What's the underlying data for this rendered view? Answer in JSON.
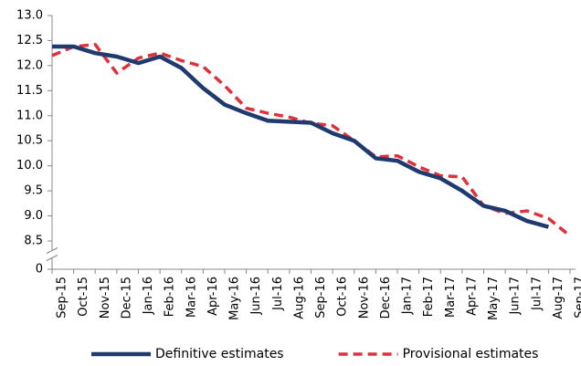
{
  "chart_data": {
    "type": "line",
    "categories": [
      "Sep-15",
      "Oct-15",
      "Nov-15",
      "Dec-15",
      "Jan-16",
      "Feb-16",
      "Mar-16",
      "Apr-16",
      "May-16",
      "Jun-16",
      "Jul-16",
      "Aug-16",
      "Sep-16",
      "Oct-16",
      "Nov-16",
      "Dec-16",
      "Jan-17",
      "Feb-17",
      "Mar-17",
      "Apr-17",
      "May-17",
      "Jun-17",
      "Jul-17",
      "Aug-17",
      "Sep-17"
    ],
    "series": [
      {
        "name": "Definitive estimates",
        "color": "#1f3a6e",
        "style": "solid",
        "values": [
          12.38,
          12.38,
          12.25,
          12.18,
          12.05,
          12.18,
          11.95,
          11.55,
          11.22,
          11.05,
          10.9,
          10.88,
          10.86,
          10.65,
          10.5,
          10.15,
          10.1,
          9.88,
          9.75,
          9.5,
          9.2,
          9.1,
          8.9,
          8.78,
          null
        ]
      },
      {
        "name": "Provisional estimates",
        "color": "#e0303a",
        "style": "dashed",
        "values": [
          12.2,
          12.38,
          12.42,
          11.85,
          12.15,
          12.25,
          12.1,
          11.98,
          11.6,
          11.15,
          11.05,
          10.97,
          10.85,
          10.8,
          10.5,
          10.18,
          10.2,
          9.98,
          9.8,
          9.78,
          9.2,
          9.05,
          9.1,
          8.95,
          8.6
        ]
      }
    ],
    "ylim": [
      0,
      13
    ],
    "axis_break": [
      0,
      8.5
    ],
    "yticks": [
      0,
      8.5,
      {
        "value": 9,
        "label": "9.0"
      },
      9.5,
      {
        "value": 10,
        "label": "10.0"
      },
      10.5,
      {
        "value": 11,
        "label": "11.0"
      },
      11.5,
      {
        "value": 12,
        "label": "12.0"
      },
      12.5,
      {
        "value": 13,
        "label": "13.0"
      }
    ],
    "legend": "bottom"
  }
}
